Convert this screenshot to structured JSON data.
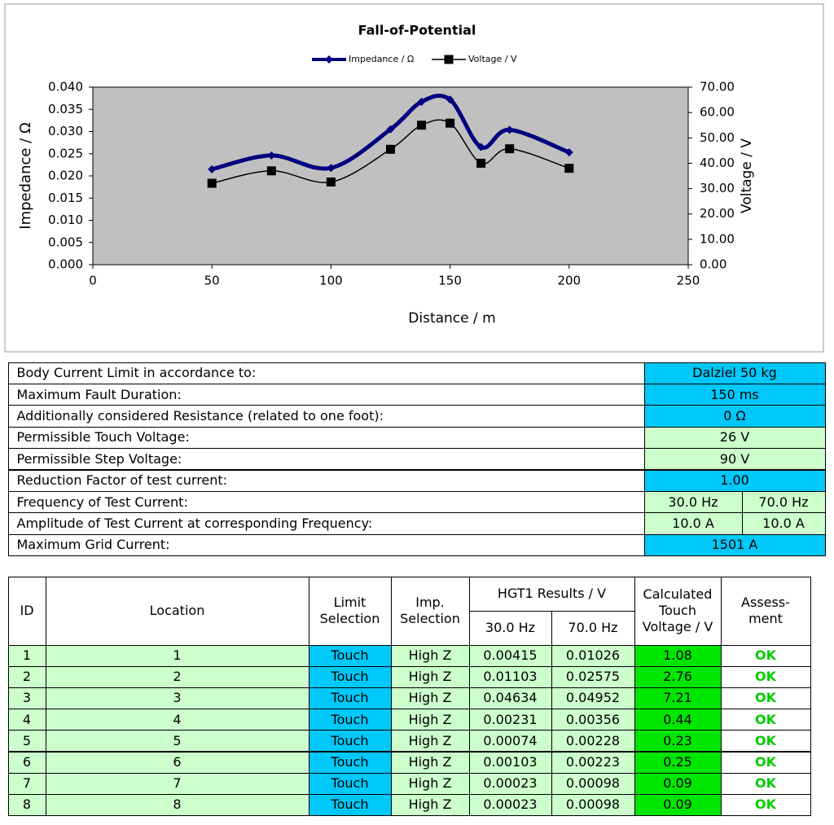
{
  "chart_data": {
    "type": "line",
    "title": "Fall-of-Potential",
    "x_label": "Distance / m",
    "y_label": "Impedance / Ω",
    "y2_label": "Voltage / V",
    "x": [
      50,
      75,
      100,
      125,
      138,
      150,
      163,
      175,
      200
    ],
    "series": [
      {
        "name": "Impedance / Ω",
        "color": "#000080",
        "marker": "diamond",
        "values": [
          0.0215,
          0.0246,
          0.0218,
          0.0305,
          0.0367,
          0.0372,
          0.0265,
          0.0304,
          0.0253
        ]
      },
      {
        "name": "Voltage / V",
        "color": "#000000",
        "marker": "square",
        "axis": "y2",
        "values": [
          32.1,
          37.0,
          32.6,
          45.5,
          55.0,
          55.8,
          40.0,
          45.7,
          38.0
        ]
      }
    ],
    "xlim": [
      0,
      250
    ],
    "xticks": [
      0,
      50,
      100,
      150,
      200,
      250
    ],
    "ylim": [
      0,
      0.04
    ],
    "yticks": [
      {
        "value": 0,
        "label": "0.000"
      },
      {
        "value": 0.005,
        "label": "0.005"
      },
      {
        "value": 0.01,
        "label": "0.010"
      },
      {
        "value": 0.015,
        "label": "0.015"
      },
      {
        "value": 0.02,
        "label": "0.020"
      },
      {
        "value": 0.025,
        "label": "0.025"
      },
      {
        "value": 0.03,
        "label": "0.030"
      },
      {
        "value": 0.035,
        "label": "0.035"
      },
      {
        "value": 0.04,
        "label": "0.040"
      }
    ],
    "y2lim": [
      0,
      70
    ],
    "y2ticks": [
      {
        "value": 0,
        "label": "0.00"
      },
      {
        "value": 10,
        "label": "10.00"
      },
      {
        "value": 20,
        "label": "20.00"
      },
      {
        "value": 30,
        "label": "30.00"
      },
      {
        "value": 40,
        "label": "40.00"
      },
      {
        "value": 50,
        "label": "50.00"
      },
      {
        "value": 60,
        "label": "60.00"
      },
      {
        "value": 70,
        "label": "70.00"
      }
    ],
    "legend": "top",
    "plot_background": "#c0c0c0"
  },
  "params": {
    "rows": [
      {
        "label": "Body Current Limit in accordance to:",
        "values": [
          "Dalziel 50 kg"
        ],
        "color": "#00c8f8"
      },
      {
        "label": "Maximum Fault Duration:",
        "values": [
          "150 ms"
        ],
        "color": "#00c8f8"
      },
      {
        "label": "Additionally considered Resistance (related to one foot):",
        "values": [
          "0 Ω"
        ],
        "color": "#00c8f8"
      },
      {
        "label": "Permissible Touch Voltage:",
        "values": [
          "26 V"
        ],
        "color": "#ccffcc"
      },
      {
        "label": "Permissible Step Voltage:",
        "values": [
          "90 V"
        ],
        "color": "#ccffcc"
      },
      {
        "label": "Reduction Factor of test current:",
        "values": [
          "1.00"
        ],
        "color": "#00c8f8"
      },
      {
        "label": "Frequency of Test Current:",
        "values": [
          "30.0 Hz",
          "70.0 Hz"
        ],
        "color": "#ccffcc"
      },
      {
        "label": "Amplitude of Test Current at corresponding Frequency:",
        "values": [
          "10.0 A",
          "10.0 A"
        ],
        "color": "#ccffcc"
      },
      {
        "label": "Maximum Grid Current:",
        "values": [
          "1501 A"
        ],
        "color": "#00c8f8"
      }
    ]
  },
  "results": {
    "headers": {
      "id": "ID",
      "location": "Location",
      "limit": "Limit Selection",
      "imp": "Imp. Selection",
      "hgt": "HGT1 Results / V",
      "f1": "30.0 Hz",
      "f2": "70.0 Hz",
      "calc": "Calculated Touch Voltage / V",
      "assess": "Assess-ment"
    },
    "rows": [
      [
        "1",
        "1",
        "Touch",
        "High Z",
        "0.00415",
        "0.01026",
        "1.08",
        "OK"
      ],
      [
        "2",
        "2",
        "Touch",
        "High Z",
        "0.01103",
        "0.02575",
        "2.76",
        "OK"
      ],
      [
        "3",
        "3",
        "Touch",
        "High Z",
        "0.04634",
        "0.04952",
        "7.21",
        "OK"
      ],
      [
        "4",
        "4",
        "Touch",
        "High Z",
        "0.00231",
        "0.00356",
        "0.44",
        "OK"
      ],
      [
        "5",
        "5",
        "Touch",
        "High Z",
        "0.00074",
        "0.00228",
        "0.23",
        "OK"
      ],
      [
        "6",
        "6",
        "Touch",
        "High Z",
        "0.00103",
        "0.00223",
        "0.25",
        "OK"
      ],
      [
        "7",
        "7",
        "Touch",
        "High Z",
        "0.00023",
        "0.00098",
        "0.09",
        "OK"
      ],
      [
        "8",
        "8",
        "Touch",
        "High Z",
        "0.00023",
        "0.00098",
        "0.09",
        "OK"
      ]
    ]
  }
}
